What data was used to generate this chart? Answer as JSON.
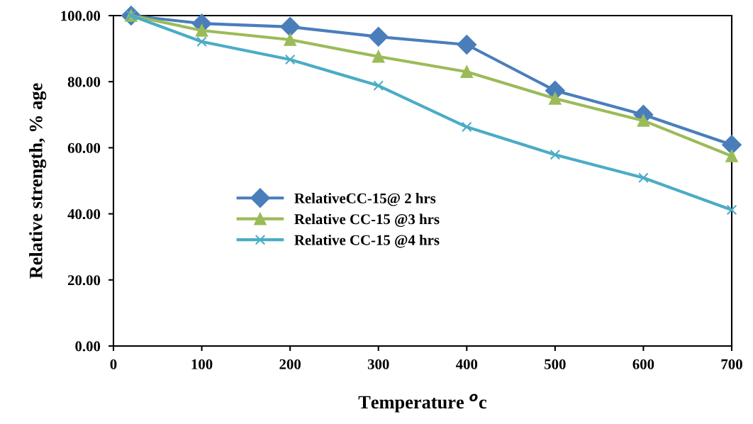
{
  "chart_data": {
    "type": "line",
    "xlabel": "Temperature $^{o}$c",
    "ylabel": "Relative strength, % age",
    "x": [
      20,
      100,
      200,
      300,
      400,
      500,
      600,
      700
    ],
    "series": [
      {
        "name": "RelativeCC-15@ 2 hrs",
        "color": "#4a7ebb",
        "marker": "diamond",
        "values": [
          100,
          97.6,
          96.6,
          93.6,
          91.2,
          77.3,
          70.0,
          60.9
        ]
      },
      {
        "name": "Relative CC-15 @3 hrs",
        "color": "#9bbb59",
        "marker": "triangle",
        "values": [
          100,
          95.5,
          92.7,
          87.6,
          83.0,
          74.9,
          68.2,
          57.5
        ]
      },
      {
        "name": "Relative CC-15 @4 hrs",
        "color": "#4bacc6",
        "marker": "cross",
        "values": [
          100,
          92.1,
          86.7,
          78.8,
          66.3,
          57.9,
          50.9,
          41.2
        ]
      }
    ],
    "xlim": [
      0,
      700
    ],
    "xticks": [
      0,
      100,
      200,
      300,
      400,
      500,
      600,
      700
    ],
    "ylim": [
      0,
      100
    ],
    "yticks": [
      {
        "value": 0,
        "label": "0.00"
      },
      {
        "value": 20,
        "label": "20.00"
      },
      {
        "value": 40,
        "label": "40.00"
      },
      {
        "value": 60,
        "label": "60.00"
      },
      {
        "value": 80,
        "label": "80.00"
      },
      {
        "value": 100,
        "label": "100.00"
      }
    ],
    "grid": false,
    "legend": "left",
    "line_style": "solid"
  }
}
